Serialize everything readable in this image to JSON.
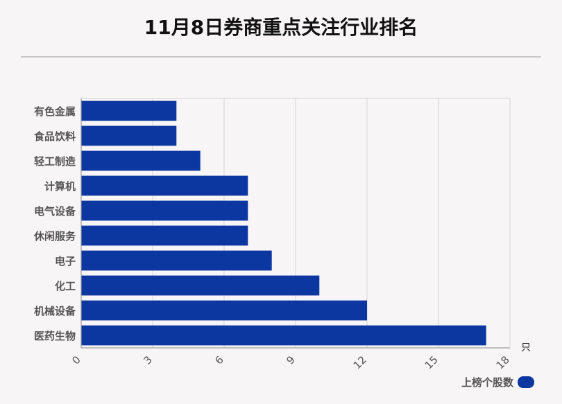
{
  "title": "11月8日券商重点关注行业排名",
  "legend_label": "上榜个股数",
  "colors": {
    "bar": "#0c37a0",
    "grid": "#d6d3d5",
    "axis": "#9a9a9a"
  },
  "chart_data": {
    "type": "bar",
    "orientation": "horizontal",
    "categories": [
      "有色金属",
      "食品饮料",
      "轻工制造",
      "计算机",
      "电气设备",
      "休闲服务",
      "电子",
      "化工",
      "机械设备",
      "医药生物"
    ],
    "series": [
      {
        "name": "上榜个股数",
        "values": [
          4,
          4,
          5,
          7,
          7,
          7,
          8,
          10,
          12,
          17
        ]
      }
    ],
    "x_ticks": [
      0,
      3,
      6,
      9,
      12,
      15,
      18
    ],
    "xlim": [
      0,
      18
    ],
    "unit": "只",
    "grid": true,
    "legend_position": "bottom-right"
  }
}
